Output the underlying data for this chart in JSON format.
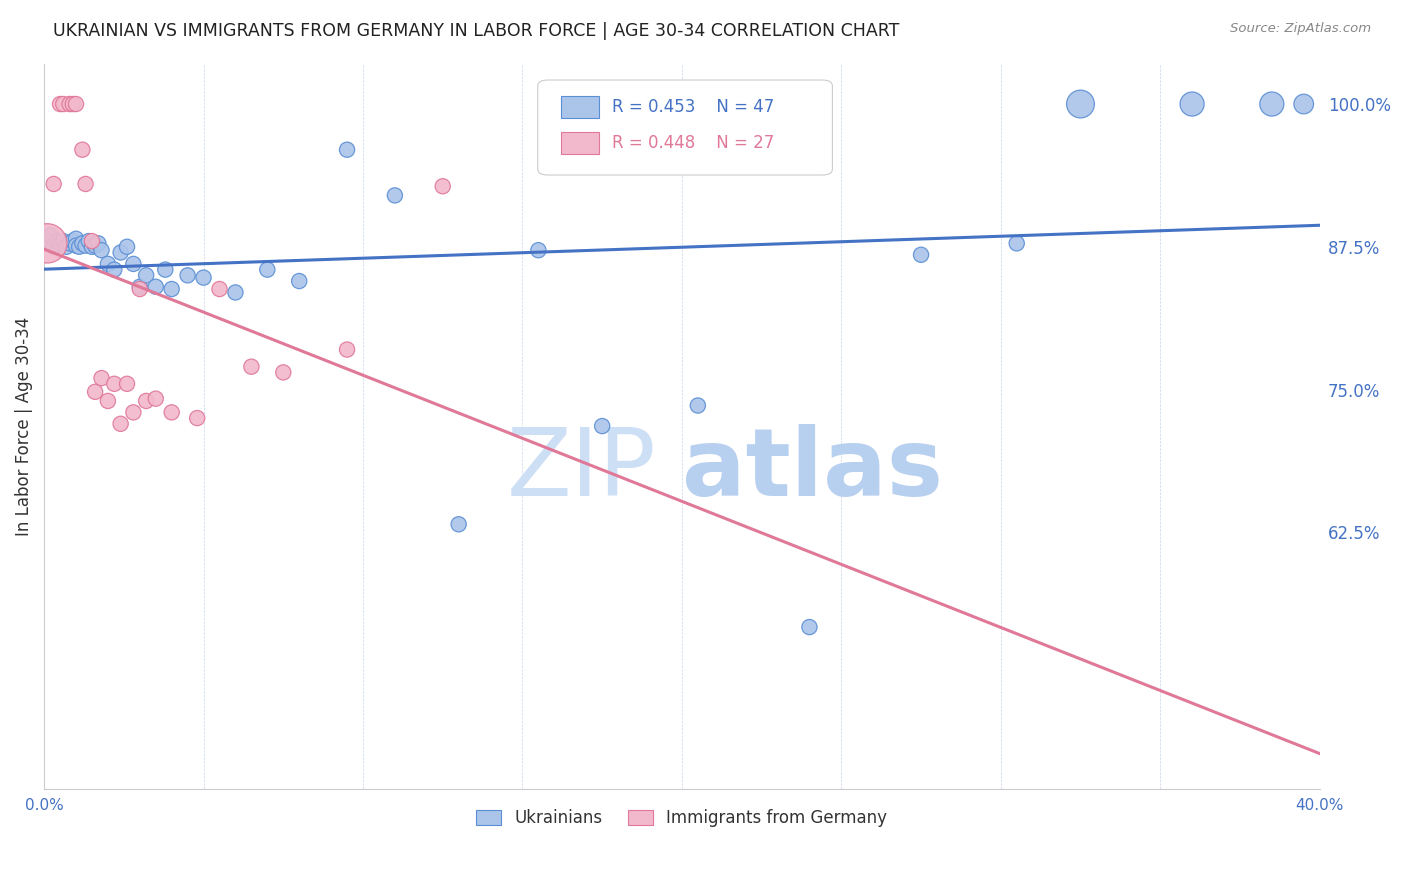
{
  "title": "UKRAINIAN VS IMMIGRANTS FROM GERMANY IN LABOR FORCE | AGE 30-34 CORRELATION CHART",
  "source": "Source: ZipAtlas.com",
  "ylabel": "In Labor Force | Age 30-34",
  "xlim": [
    0.0,
    0.4
  ],
  "ylim": [
    0.4,
    1.035
  ],
  "xticks": [
    0.0,
    0.05,
    0.1,
    0.15,
    0.2,
    0.25,
    0.3,
    0.35,
    0.4
  ],
  "xticklabels": [
    "0.0%",
    "",
    "",
    "",
    "",
    "",
    "",
    "",
    "40.0%"
  ],
  "yticks": [
    0.625,
    0.75,
    0.875,
    1.0
  ],
  "yticklabels": [
    "62.5%",
    "75.0%",
    "87.5%",
    "100.0%"
  ],
  "legend_r_blue": "R = 0.453",
  "legend_n_blue": "N = 47",
  "legend_r_pink": "R = 0.448",
  "legend_n_pink": "N = 27",
  "legend_label_blue": "Ukrainians",
  "legend_label_pink": "Immigrants from Germany",
  "blue_color": "#aac4ea",
  "pink_color": "#f2b8cb",
  "blue_edge_color": "#5b8fd4",
  "pink_edge_color": "#e07898",
  "blue_line_color": "#4472c4",
  "pink_line_color": "#e07898",
  "watermark_zip": "ZIP",
  "watermark_atlas": "atlas",
  "watermark_color": "#cddff5",
  "bg_color": "#ffffff",
  "grid_color": "#c8d4e8",
  "title_color": "#222222",
  "axis_color": "#4472c4",
  "source_color": "#888888",
  "ylabel_color": "#333333",
  "blue_scatter_x": [
    0.001,
    0.002,
    0.003,
    0.004,
    0.005,
    0.006,
    0.007,
    0.008,
    0.009,
    0.01,
    0.01,
    0.011,
    0.012,
    0.013,
    0.014,
    0.015,
    0.016,
    0.017,
    0.018,
    0.02,
    0.022,
    0.024,
    0.026,
    0.028,
    0.03,
    0.032,
    0.035,
    0.038,
    0.04,
    0.045,
    0.05,
    0.06,
    0.07,
    0.08,
    0.095,
    0.11,
    0.13,
    0.155,
    0.175,
    0.205,
    0.24,
    0.275,
    0.305,
    0.325,
    0.36,
    0.385,
    0.395
  ],
  "blue_scatter_y": [
    0.88,
    0.885,
    0.875,
    0.88,
    0.878,
    0.88,
    0.875,
    0.878,
    0.88,
    0.882,
    0.876,
    0.875,
    0.878,
    0.876,
    0.88,
    0.875,
    0.876,
    0.878,
    0.872,
    0.86,
    0.855,
    0.87,
    0.875,
    0.86,
    0.84,
    0.85,
    0.84,
    0.855,
    0.838,
    0.85,
    0.848,
    0.835,
    0.855,
    0.845,
    0.96,
    0.92,
    0.632,
    0.872,
    0.718,
    0.736,
    0.542,
    0.868,
    0.878,
    1.0,
    1.0,
    1.0,
    1.0
  ],
  "blue_scatter_size": [
    120,
    120,
    120,
    120,
    120,
    120,
    120,
    120,
    120,
    120,
    120,
    120,
    120,
    120,
    120,
    120,
    120,
    120,
    120,
    120,
    120,
    120,
    120,
    120,
    120,
    120,
    120,
    120,
    120,
    120,
    120,
    120,
    120,
    120,
    120,
    120,
    120,
    120,
    120,
    120,
    120,
    120,
    120,
    400,
    300,
    300,
    200
  ],
  "pink_scatter_x": [
    0.001,
    0.003,
    0.005,
    0.006,
    0.008,
    0.009,
    0.01,
    0.012,
    0.013,
    0.015,
    0.016,
    0.018,
    0.02,
    0.022,
    0.024,
    0.026,
    0.028,
    0.03,
    0.032,
    0.035,
    0.04,
    0.048,
    0.055,
    0.065,
    0.075,
    0.095,
    0.125
  ],
  "pink_scatter_y": [
    0.878,
    0.93,
    1.0,
    1.0,
    1.0,
    1.0,
    1.0,
    0.96,
    0.93,
    0.88,
    0.748,
    0.76,
    0.74,
    0.755,
    0.72,
    0.755,
    0.73,
    0.838,
    0.74,
    0.742,
    0.73,
    0.725,
    0.838,
    0.77,
    0.765,
    0.785,
    0.928
  ],
  "pink_scatter_size": [
    800,
    120,
    120,
    120,
    120,
    120,
    120,
    120,
    120,
    120,
    120,
    120,
    120,
    120,
    120,
    120,
    120,
    120,
    120,
    120,
    120,
    120,
    120,
    120,
    120,
    120,
    120
  ]
}
